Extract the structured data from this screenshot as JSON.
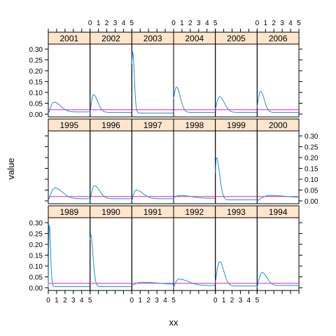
{
  "chart_data": {
    "type": "line",
    "layout": "lattice-panels",
    "xlabel": "xx",
    "ylabel": "value",
    "xlim": [
      0,
      5
    ],
    "ylim": [
      0,
      0.31
    ],
    "x_ticks": [
      "0",
      "1",
      "2",
      "3",
      "4",
      "5"
    ],
    "y_ticks": [
      "0.00",
      "0.05",
      "0.10",
      "0.15",
      "0.20",
      "0.25",
      "0.30"
    ],
    "reference_level": 0.02,
    "colors": {
      "curve": "#1E90D8",
      "reference": "#E020C8",
      "strip": "#FFE5CC",
      "frame": "#000000"
    },
    "panel_rows": [
      [
        {
          "label": "2001",
          "peak": 0.055,
          "peak_x": 0.7,
          "start": 0.0,
          "spread": 1.2,
          "tail": 0.01
        },
        {
          "label": "2002",
          "peak": 0.09,
          "peak_x": 0.4,
          "start": 0.0,
          "spread": 0.8,
          "tail": 0.008
        },
        {
          "label": "2003",
          "peak": 0.29,
          "peak_x": 0.1,
          "start": 0.23,
          "spread": 0.3,
          "tail": 0.005
        },
        {
          "label": "2004",
          "peak": 0.125,
          "peak_x": 0.35,
          "start": 0.07,
          "spread": 0.7,
          "tail": 0.008
        },
        {
          "label": "2005",
          "peak": 0.08,
          "peak_x": 0.5,
          "start": 0.02,
          "spread": 0.9,
          "tail": 0.008
        },
        {
          "label": "2006",
          "peak": 0.105,
          "peak_x": 0.4,
          "start": 0.03,
          "spread": 0.7,
          "tail": 0.008
        }
      ],
      [
        {
          "label": "1995",
          "peak": 0.06,
          "peak_x": 0.8,
          "start": 0.0,
          "spread": 1.4,
          "tail": 0.01
        },
        {
          "label": "1996",
          "peak": 0.07,
          "peak_x": 0.5,
          "start": 0.0,
          "spread": 1.0,
          "tail": 0.01
        },
        {
          "label": "1997",
          "peak": 0.05,
          "peak_x": 0.5,
          "start": 0.0,
          "spread": 1.3,
          "tail": 0.01
        },
        {
          "label": "1998",
          "peak": 0.025,
          "peak_x": 0.8,
          "start": 0.015,
          "spread": 2.0,
          "tail": 0.012
        },
        {
          "label": "1999",
          "peak": 0.2,
          "peak_x": 0.12,
          "start": 0.13,
          "spread": 0.6,
          "tail": 0.005
        },
        {
          "label": "2000",
          "peak": 0.025,
          "peak_x": 1.5,
          "start": 0.0,
          "spread": 3.0,
          "tail": 0.015
        }
      ],
      [
        {
          "label": "1989",
          "peak": 0.3,
          "peak_x": 0.1,
          "start": 0.0,
          "spread": 0.25,
          "tail": 0.005
        },
        {
          "label": "1990",
          "peak": 0.25,
          "peak_x": 0.05,
          "start": 0.22,
          "spread": 0.45,
          "tail": 0.005
        },
        {
          "label": "1991",
          "peak": 0.025,
          "peak_x": 1.2,
          "start": 0.01,
          "spread": 3.0,
          "tail": 0.015
        },
        {
          "label": "1992",
          "peak": 0.04,
          "peak_x": 0.6,
          "start": 0.0,
          "spread": 1.8,
          "tail": 0.01
        },
        {
          "label": "1993",
          "peak": 0.12,
          "peak_x": 0.5,
          "start": 0.02,
          "spread": 0.8,
          "tail": 0.008
        },
        {
          "label": "1994",
          "peak": 0.07,
          "peak_x": 0.6,
          "start": 0.0,
          "spread": 0.9,
          "tail": 0.01
        }
      ]
    ]
  }
}
